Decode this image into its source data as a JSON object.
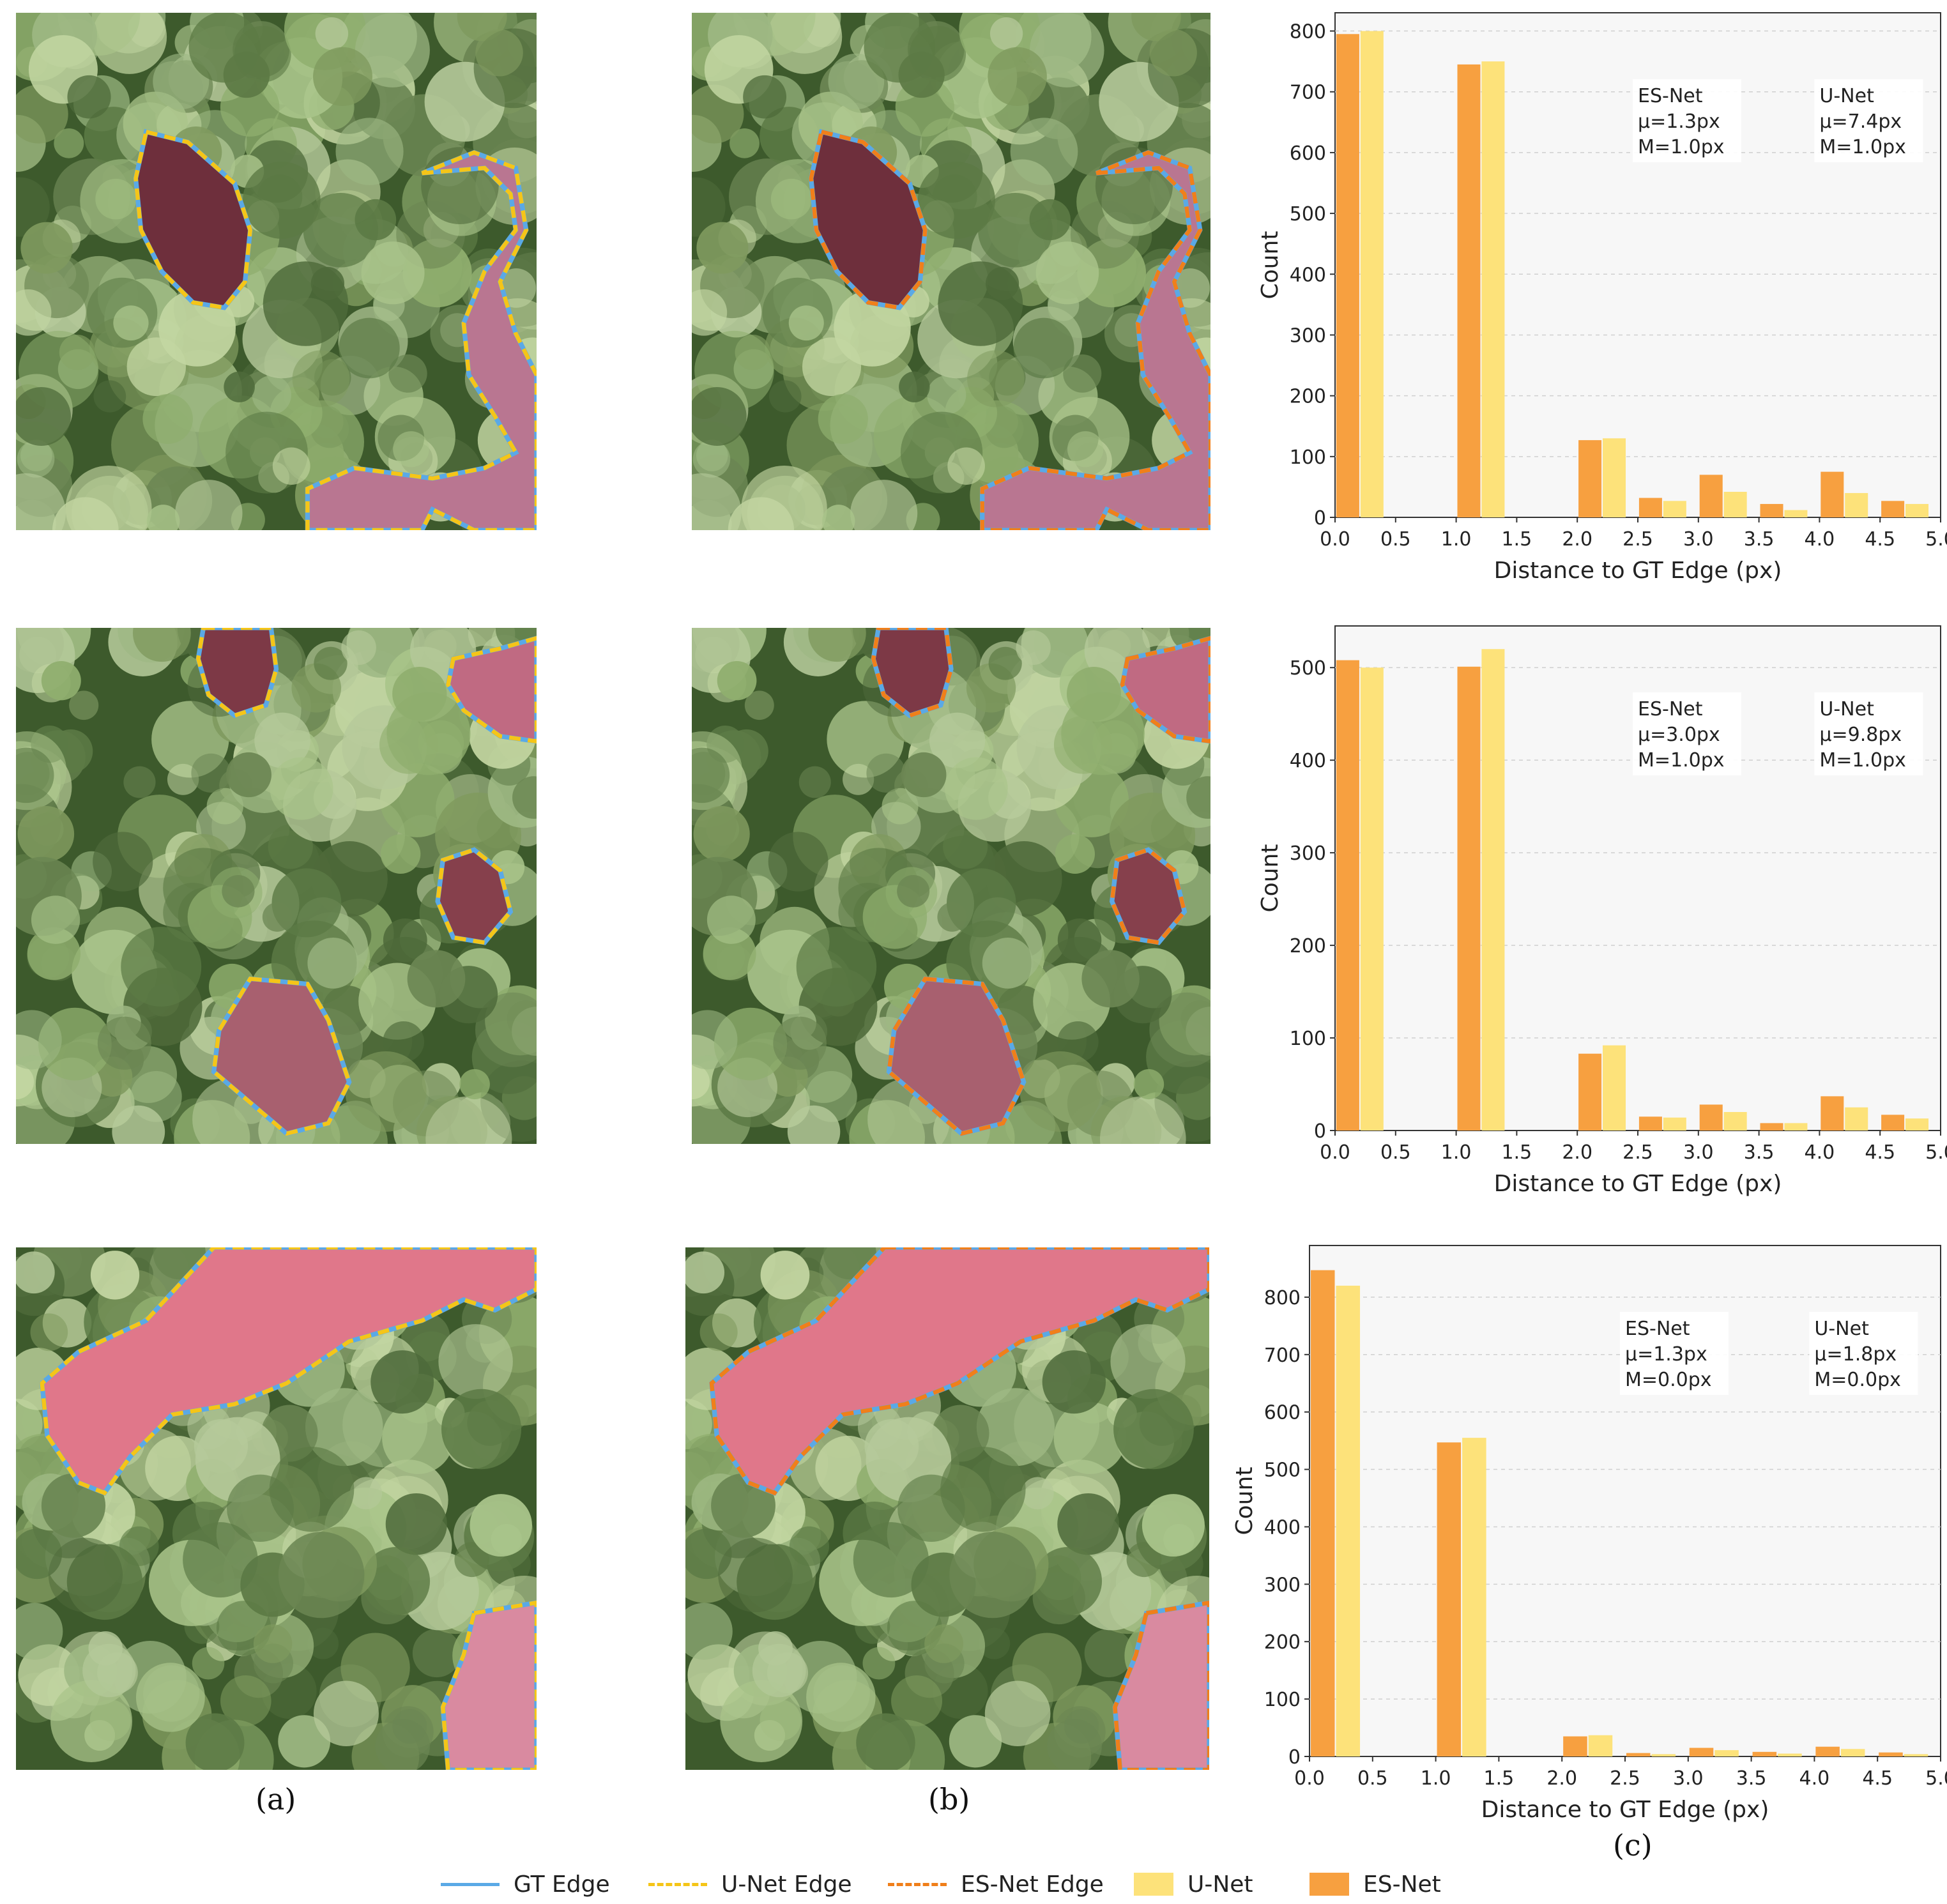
{
  "rows": [
    {
      "image_a": {
        "regions": [
          {
            "shape": "blob-1",
            "fill": "#6e2f3c",
            "has_gt": true,
            "pred": "unet"
          },
          {
            "shape": "river-1",
            "fill": "#b97691",
            "has_gt": true,
            "pred": "unet"
          }
        ]
      },
      "image_b": {
        "regions": [
          {
            "shape": "blob-1",
            "fill": "#6e2f3c",
            "has_gt": true,
            "pred": "esnet"
          },
          {
            "shape": "river-1",
            "fill": "#b97691",
            "has_gt": true,
            "pred": "esnet"
          }
        ]
      }
    },
    {
      "image_a": {
        "regions": [
          {
            "shape": "blob-2a",
            "fill": "#7d3946",
            "has_gt": true,
            "pred": "unet"
          },
          {
            "shape": "blob-2b",
            "fill": "#c06a82",
            "has_gt": true,
            "pred": "unet"
          },
          {
            "shape": "blob-2c",
            "fill": "#86404c",
            "has_gt": true,
            "pred": "unet"
          },
          {
            "shape": "blob-2d",
            "fill": "#a8606f",
            "has_gt": true,
            "pred": "unet"
          }
        ]
      },
      "image_b": {
        "regions": [
          {
            "shape": "blob-2a",
            "fill": "#7d3946",
            "has_gt": true,
            "pred": "esnet"
          },
          {
            "shape": "blob-2b",
            "fill": "#c06a82",
            "has_gt": true,
            "pred": "esnet"
          },
          {
            "shape": "blob-2c",
            "fill": "#86404c",
            "has_gt": true,
            "pred": "esnet"
          },
          {
            "shape": "blob-2d",
            "fill": "#a8606f",
            "has_gt": true,
            "pred": "esnet"
          }
        ]
      }
    },
    {
      "image_a": {
        "regions": [
          {
            "shape": "band-3",
            "fill": "#e0778a",
            "has_gt": true,
            "pred": "unet"
          },
          {
            "shape": "corner-3",
            "fill": "#d98aa0",
            "has_gt": true,
            "pred": "unet"
          }
        ]
      },
      "image_b": {
        "regions": [
          {
            "shape": "band-3",
            "fill": "#e0778a",
            "has_gt": true,
            "pred": "esnet"
          },
          {
            "shape": "corner-3",
            "fill": "#d98aa0",
            "has_gt": true,
            "pred": "esnet"
          }
        ]
      }
    }
  ],
  "chart_data": [
    {
      "type": "bar",
      "xlabel": "Distance to GT Edge (px)",
      "ylabel": "Count",
      "xlim": [
        0,
        5
      ],
      "ylim": [
        0,
        830
      ],
      "xticks": [
        "0.0",
        "0.5",
        "1.0",
        "1.5",
        "2.0",
        "2.5",
        "3.0",
        "3.5",
        "4.0",
        "4.5",
        "5.0"
      ],
      "yticks": [
        0,
        100,
        200,
        300,
        400,
        500,
        600,
        700,
        800
      ],
      "grid": "y-dashed",
      "bins_left": [
        0.0,
        1.0,
        2.0,
        2.5,
        3.0,
        3.5,
        4.0,
        4.5
      ],
      "series": [
        {
          "name": "ES-Net",
          "color": "#f7a040",
          "values": [
            795,
            745,
            127,
            32,
            70,
            22,
            75,
            27
          ]
        },
        {
          "name": "U-Net",
          "color": "#fde27a",
          "values": [
            800,
            750,
            130,
            27,
            42,
            12,
            40,
            22
          ]
        }
      ],
      "annotations": [
        {
          "lines": [
            "ES-Net",
            "μ=1.3px",
            "M=1.0px"
          ]
        },
        {
          "lines": [
            "U-Net",
            "μ=7.4px",
            "M=1.0px"
          ]
        }
      ]
    },
    {
      "type": "bar",
      "xlabel": "Distance to GT Edge (px)",
      "ylabel": "Count",
      "xlim": [
        0,
        5
      ],
      "ylim": [
        0,
        545
      ],
      "xticks": [
        "0.0",
        "0.5",
        "1.0",
        "1.5",
        "2.0",
        "2.5",
        "3.0",
        "3.5",
        "4.0",
        "4.5",
        "5.0"
      ],
      "yticks": [
        0,
        100,
        200,
        300,
        400,
        500
      ],
      "grid": "y-dashed",
      "bins_left": [
        0.0,
        1.0,
        2.0,
        2.5,
        3.0,
        3.5,
        4.0,
        4.5
      ],
      "series": [
        {
          "name": "ES-Net",
          "color": "#f7a040",
          "values": [
            508,
            501,
            83,
            15,
            28,
            8,
            37,
            17
          ]
        },
        {
          "name": "U-Net",
          "color": "#fde27a",
          "values": [
            500,
            520,
            92,
            14,
            20,
            8,
            25,
            13
          ]
        }
      ],
      "annotations": [
        {
          "lines": [
            "ES-Net",
            "μ=3.0px",
            "M=1.0px"
          ]
        },
        {
          "lines": [
            "U-Net",
            "μ=9.8px",
            "M=1.0px"
          ]
        }
      ]
    },
    {
      "type": "bar",
      "xlabel": "Distance to GT Edge (px)",
      "ylabel": "Count",
      "xlim": [
        0,
        5
      ],
      "ylim": [
        0,
        890
      ],
      "xticks": [
        "0.0",
        "0.5",
        "1.0",
        "1.5",
        "2.0",
        "2.5",
        "3.0",
        "3.5",
        "4.0",
        "4.5",
        "5.0"
      ],
      "yticks": [
        0,
        100,
        200,
        300,
        400,
        500,
        600,
        700,
        800
      ],
      "grid": "y-dashed",
      "bins_left": [
        0.0,
        1.0,
        2.0,
        2.5,
        3.0,
        3.5,
        4.0,
        4.5
      ],
      "series": [
        {
          "name": "ES-Net",
          "color": "#f7a040",
          "values": [
            847,
            547,
            35,
            6,
            15,
            8,
            17,
            7
          ]
        },
        {
          "name": "U-Net",
          "color": "#fde27a",
          "values": [
            820,
            555,
            37,
            4,
            11,
            5,
            13,
            4
          ]
        }
      ],
      "annotations": [
        {
          "lines": [
            "ES-Net",
            "μ=1.3px",
            "M=0.0px"
          ]
        },
        {
          "lines": [
            "U-Net",
            "μ=1.8px",
            "M=0.0px"
          ]
        }
      ]
    }
  ],
  "captions": {
    "a": "(a)",
    "b": "(b)",
    "c": "(c)"
  },
  "legend": [
    {
      "label": "GT Edge",
      "kind": "line",
      "color": "#5aa9e6",
      "dash": "solid"
    },
    {
      "label": "U-Net Edge",
      "kind": "line",
      "color": "#f5c518",
      "dash": "dashed"
    },
    {
      "label": "ES-Net Edge",
      "kind": "line",
      "color": "#f07f1a",
      "dash": "dashed"
    },
    {
      "label": "U-Net",
      "kind": "box",
      "color": "#fde27a"
    },
    {
      "label": "ES-Net",
      "kind": "box",
      "color": "#f7a040"
    }
  ],
  "colors": {
    "canopy_dark": "#3d5a2c",
    "canopy_light": "#a9c48a",
    "gt_edge": "#5aa9e6",
    "unet_edge": "#f5c518",
    "esnet_edge": "#f07f1a",
    "plot_bg": "#f7f7f7"
  }
}
